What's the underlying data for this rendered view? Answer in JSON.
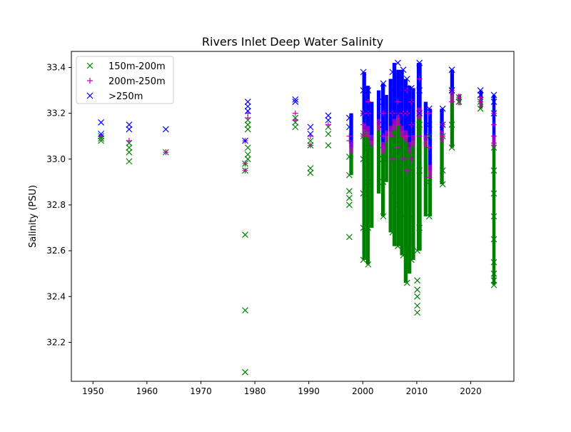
{
  "chart_data": {
    "type": "scatter",
    "title": "Rivers Inlet Deep Water Salinity",
    "xlabel": "",
    "ylabel": "Salinity (PSU)",
    "xlim": [
      1946,
      2028
    ],
    "ylim": [
      32.03,
      33.47
    ],
    "xticks": [
      1950,
      1960,
      1970,
      1980,
      1990,
      2000,
      2010,
      2020
    ],
    "yticks": [
      32.2,
      32.4,
      32.6,
      32.8,
      33.0,
      33.2,
      33.4
    ],
    "ytick_labels": [
      "32.2",
      "32.4",
      "32.6",
      "32.8",
      "33.0",
      "33.2",
      "33.4"
    ],
    "legend_position": "top-left",
    "grid": false,
    "series": [
      {
        "name": "150m-200m",
        "marker": "x",
        "color": "#008000",
        "points": [
          [
            1951.5,
            33.08
          ],
          [
            1951.5,
            33.09
          ],
          [
            1951.5,
            33.1
          ],
          [
            1956.7,
            32.99
          ],
          [
            1956.7,
            33.03
          ],
          [
            1956.7,
            33.05
          ],
          [
            1956.7,
            33.07
          ],
          [
            1963.5,
            33.03
          ],
          [
            1978.2,
            32.07
          ],
          [
            1978.2,
            32.34
          ],
          [
            1978.2,
            32.67
          ],
          [
            1978.2,
            32.95
          ],
          [
            1978.2,
            32.98
          ],
          [
            1978.7,
            33.0
          ],
          [
            1978.7,
            33.02
          ],
          [
            1978.7,
            33.05
          ],
          [
            1978.7,
            33.13
          ],
          [
            1978.7,
            33.15
          ],
          [
            1978.7,
            33.17
          ],
          [
            1987.5,
            33.14
          ],
          [
            1987.5,
            33.16
          ],
          [
            1987.5,
            33.18
          ],
          [
            1990.3,
            32.94
          ],
          [
            1990.3,
            32.96
          ],
          [
            1990.3,
            33.06
          ],
          [
            1990.3,
            33.08
          ],
          [
            1993.6,
            33.06
          ],
          [
            1993.6,
            33.11
          ],
          [
            1993.6,
            33.14
          ],
          [
            1997.5,
            32.66
          ],
          [
            1997.5,
            32.8
          ],
          [
            1997.5,
            32.83
          ],
          [
            1997.5,
            32.86
          ],
          [
            1997.5,
            32.93
          ],
          [
            1997.5,
            33.01
          ],
          [
            2000.1,
            32.56
          ],
          [
            2000.1,
            32.7
          ],
          [
            2000.1,
            32.85
          ],
          [
            2000.1,
            33.0
          ],
          [
            2000.1,
            33.1
          ],
          [
            2001.0,
            32.54
          ],
          [
            2001.0,
            32.7
          ],
          [
            2001.0,
            32.9
          ],
          [
            2001.0,
            33.05
          ],
          [
            2003.8,
            32.75
          ],
          [
            2003.8,
            32.9
          ],
          [
            2003.8,
            33.0
          ],
          [
            2005.5,
            32.68
          ],
          [
            2005.5,
            32.85
          ],
          [
            2005.5,
            33.05
          ],
          [
            2006.5,
            32.62
          ],
          [
            2006.5,
            32.8
          ],
          [
            2006.5,
            33.02
          ],
          [
            2007.5,
            32.58
          ],
          [
            2007.5,
            32.75
          ],
          [
            2007.5,
            33.0
          ],
          [
            2008.2,
            32.46
          ],
          [
            2008.2,
            32.6
          ],
          [
            2008.2,
            32.8
          ],
          [
            2008.2,
            33.0
          ],
          [
            2009.0,
            32.56
          ],
          [
            2009.0,
            32.75
          ],
          [
            2009.0,
            32.95
          ],
          [
            2010.1,
            32.33
          ],
          [
            2010.1,
            32.36
          ],
          [
            2010.1,
            32.4
          ],
          [
            2010.1,
            32.43
          ],
          [
            2010.1,
            32.47
          ],
          [
            2010.1,
            32.6
          ],
          [
            2010.5,
            32.7
          ],
          [
            2010.5,
            32.95
          ],
          [
            2010.5,
            33.15
          ],
          [
            2012.3,
            32.75
          ],
          [
            2012.3,
            32.9
          ],
          [
            2012.3,
            33.1
          ],
          [
            2014.8,
            32.89
          ],
          [
            2014.8,
            32.95
          ],
          [
            2014.8,
            33.1
          ],
          [
            2016.5,
            33.05
          ],
          [
            2016.5,
            33.15
          ],
          [
            2016.5,
            33.3
          ],
          [
            2017.8,
            33.25
          ],
          [
            2017.8,
            33.27
          ],
          [
            2021.8,
            33.22
          ],
          [
            2021.8,
            33.25
          ],
          [
            2024.3,
            32.45
          ],
          [
            2024.3,
            32.47
          ],
          [
            2024.3,
            32.5
          ],
          [
            2024.3,
            32.55
          ],
          [
            2024.3,
            32.65
          ],
          [
            2024.3,
            32.75
          ],
          [
            2024.3,
            32.85
          ],
          [
            2024.3,
            32.95
          ],
          [
            2024.3,
            33.05
          ]
        ]
      },
      {
        "name": "200m-250m",
        "marker": "+",
        "color": "#bf00bf",
        "points": [
          [
            1951.5,
            33.1
          ],
          [
            1956.7,
            33.08
          ],
          [
            1963.5,
            33.03
          ],
          [
            1978.2,
            32.95
          ],
          [
            1978.2,
            32.98
          ],
          [
            1978.2,
            33.08
          ],
          [
            1978.7,
            33.18
          ],
          [
            1978.7,
            33.2
          ],
          [
            1987.5,
            33.17
          ],
          [
            1987.5,
            33.2
          ],
          [
            1990.3,
            33.06
          ],
          [
            1990.3,
            33.1
          ],
          [
            1993.6,
            33.15
          ],
          [
            1997.5,
            33.08
          ],
          [
            1997.5,
            33.1
          ],
          [
            2000.1,
            33.1
          ],
          [
            2000.1,
            33.15
          ],
          [
            2000.1,
            33.2
          ],
          [
            2001.0,
            33.1
          ],
          [
            2001.0,
            33.2
          ],
          [
            2001.0,
            33.25
          ],
          [
            2003.8,
            33.05
          ],
          [
            2003.8,
            33.1
          ],
          [
            2003.8,
            33.2
          ],
          [
            2005.5,
            33.0
          ],
          [
            2005.5,
            33.1
          ],
          [
            2005.5,
            33.2
          ],
          [
            2006.5,
            33.05
          ],
          [
            2006.5,
            33.15
          ],
          [
            2006.5,
            33.25
          ],
          [
            2007.5,
            33.0
          ],
          [
            2007.5,
            33.1
          ],
          [
            2007.5,
            33.2
          ],
          [
            2008.2,
            32.95
          ],
          [
            2008.2,
            33.1
          ],
          [
            2008.2,
            33.2
          ],
          [
            2008.2,
            33.3
          ],
          [
            2009.0,
            33.0
          ],
          [
            2009.0,
            33.15
          ],
          [
            2009.0,
            33.25
          ],
          [
            2010.5,
            33.1
          ],
          [
            2010.5,
            33.2
          ],
          [
            2010.5,
            33.35
          ],
          [
            2012.3,
            32.92
          ],
          [
            2012.3,
            33.05
          ],
          [
            2012.3,
            33.2
          ],
          [
            2014.8,
            33.1
          ],
          [
            2014.8,
            33.15
          ],
          [
            2016.5,
            33.25
          ],
          [
            2016.5,
            33.3
          ],
          [
            2017.8,
            33.27
          ],
          [
            2021.8,
            33.25
          ],
          [
            2021.8,
            33.27
          ],
          [
            2024.3,
            33.07
          ],
          [
            2024.3,
            33.1
          ],
          [
            2024.3,
            33.15
          ],
          [
            2024.3,
            33.2
          ]
        ]
      },
      {
        "name": ">250m",
        "marker": "x",
        "color": "#0000ff",
        "points": [
          [
            1951.5,
            33.11
          ],
          [
            1951.5,
            33.16
          ],
          [
            1956.7,
            33.13
          ],
          [
            1956.7,
            33.15
          ],
          [
            1963.5,
            33.13
          ],
          [
            1978.2,
            33.08
          ],
          [
            1978.7,
            33.21
          ],
          [
            1978.7,
            33.23
          ],
          [
            1978.7,
            33.25
          ],
          [
            1987.5,
            33.25
          ],
          [
            1987.5,
            33.26
          ],
          [
            1990.3,
            33.11
          ],
          [
            1990.3,
            33.14
          ],
          [
            1993.6,
            33.17
          ],
          [
            1993.6,
            33.19
          ],
          [
            1997.5,
            33.14
          ],
          [
            1997.5,
            33.18
          ],
          [
            2000.1,
            33.2
          ],
          [
            2000.1,
            33.3
          ],
          [
            2000.1,
            33.38
          ],
          [
            2001.0,
            33.2
          ],
          [
            2001.0,
            33.3
          ],
          [
            2003.8,
            33.15
          ],
          [
            2003.8,
            33.25
          ],
          [
            2003.8,
            33.33
          ],
          [
            2005.5,
            33.2
          ],
          [
            2005.5,
            33.3
          ],
          [
            2005.5,
            33.38
          ],
          [
            2006.5,
            33.2
          ],
          [
            2006.5,
            33.35
          ],
          [
            2006.5,
            33.42
          ],
          [
            2007.5,
            33.2
          ],
          [
            2007.5,
            33.3
          ],
          [
            2007.5,
            33.39
          ],
          [
            2008.2,
            33.2
          ],
          [
            2008.2,
            33.3
          ],
          [
            2008.2,
            33.35
          ],
          [
            2009.0,
            33.15
          ],
          [
            2009.0,
            33.25
          ],
          [
            2009.0,
            33.31
          ],
          [
            2010.5,
            33.2
          ],
          [
            2010.5,
            33.3
          ],
          [
            2010.5,
            33.42
          ],
          [
            2012.3,
            33.15
          ],
          [
            2012.3,
            33.22
          ],
          [
            2014.8,
            33.15
          ],
          [
            2014.8,
            33.22
          ],
          [
            2016.5,
            33.3
          ],
          [
            2016.5,
            33.39
          ],
          [
            2021.8,
            33.28
          ],
          [
            2021.8,
            33.3
          ],
          [
            2024.3,
            33.2
          ],
          [
            2024.3,
            33.25
          ],
          [
            2024.3,
            33.28
          ]
        ]
      }
    ],
    "dense_columns": [
      {
        "x0": 1997.5,
        "x1": 1998.2,
        "low": 32.93,
        "mid": 33.05,
        "high": 33.2
      },
      {
        "x0": 1999.9,
        "x1": 2000.6,
        "low": 32.56,
        "mid": 33.13,
        "high": 33.38
      },
      {
        "x0": 2000.6,
        "x1": 2001.3,
        "low": 32.54,
        "mid": 33.12,
        "high": 33.32
      },
      {
        "x0": 2001.3,
        "x1": 2002.0,
        "low": 32.7,
        "mid": 33.08,
        "high": 33.25
      },
      {
        "x0": 2002.6,
        "x1": 2003.3,
        "low": 32.85,
        "mid": 33.15,
        "high": 33.3
      },
      {
        "x0": 2003.4,
        "x1": 2004.1,
        "low": 32.75,
        "mid": 33.05,
        "high": 33.33
      },
      {
        "x0": 2004.1,
        "x1": 2004.7,
        "low": 32.9,
        "mid": 33.1,
        "high": 33.28
      },
      {
        "x0": 2004.8,
        "x1": 2005.5,
        "low": 32.68,
        "mid": 33.12,
        "high": 33.35
      },
      {
        "x0": 2005.5,
        "x1": 2006.2,
        "low": 32.62,
        "mid": 33.15,
        "high": 33.42
      },
      {
        "x0": 2006.2,
        "x1": 2006.9,
        "low": 32.62,
        "mid": 33.18,
        "high": 33.39
      },
      {
        "x0": 2006.9,
        "x1": 2007.6,
        "low": 32.58,
        "mid": 33.12,
        "high": 33.39
      },
      {
        "x0": 2007.6,
        "x1": 2008.3,
        "low": 32.46,
        "mid": 33.1,
        "high": 33.35
      },
      {
        "x0": 2008.3,
        "x1": 2009.0,
        "low": 32.5,
        "mid": 33.05,
        "high": 33.32
      },
      {
        "x0": 2009.0,
        "x1": 2009.7,
        "low": 32.56,
        "mid": 33.08,
        "high": 33.31
      },
      {
        "x0": 2010.0,
        "x1": 2010.9,
        "low": 32.6,
        "mid": 33.2,
        "high": 33.42
      },
      {
        "x0": 2011.3,
        "x1": 2012.0,
        "low": 32.75,
        "mid": 33.08,
        "high": 33.25
      },
      {
        "x0": 2012.1,
        "x1": 2012.8,
        "low": 32.75,
        "mid": 32.95,
        "high": 33.22
      },
      {
        "x0": 2014.3,
        "x1": 2015.0,
        "low": 32.89,
        "mid": 33.1,
        "high": 33.22
      },
      {
        "x0": 2016.2,
        "x1": 2016.9,
        "low": 33.05,
        "mid": 33.28,
        "high": 33.39
      },
      {
        "x0": 2017.6,
        "x1": 2018.2,
        "low": 33.25,
        "mid": 33.26,
        "high": 33.28
      },
      {
        "x0": 2021.6,
        "x1": 2022.2,
        "low": 33.22,
        "mid": 33.25,
        "high": 33.3
      },
      {
        "x0": 2024.0,
        "x1": 2024.6,
        "low": 32.45,
        "mid": 33.07,
        "high": 33.28
      }
    ]
  }
}
